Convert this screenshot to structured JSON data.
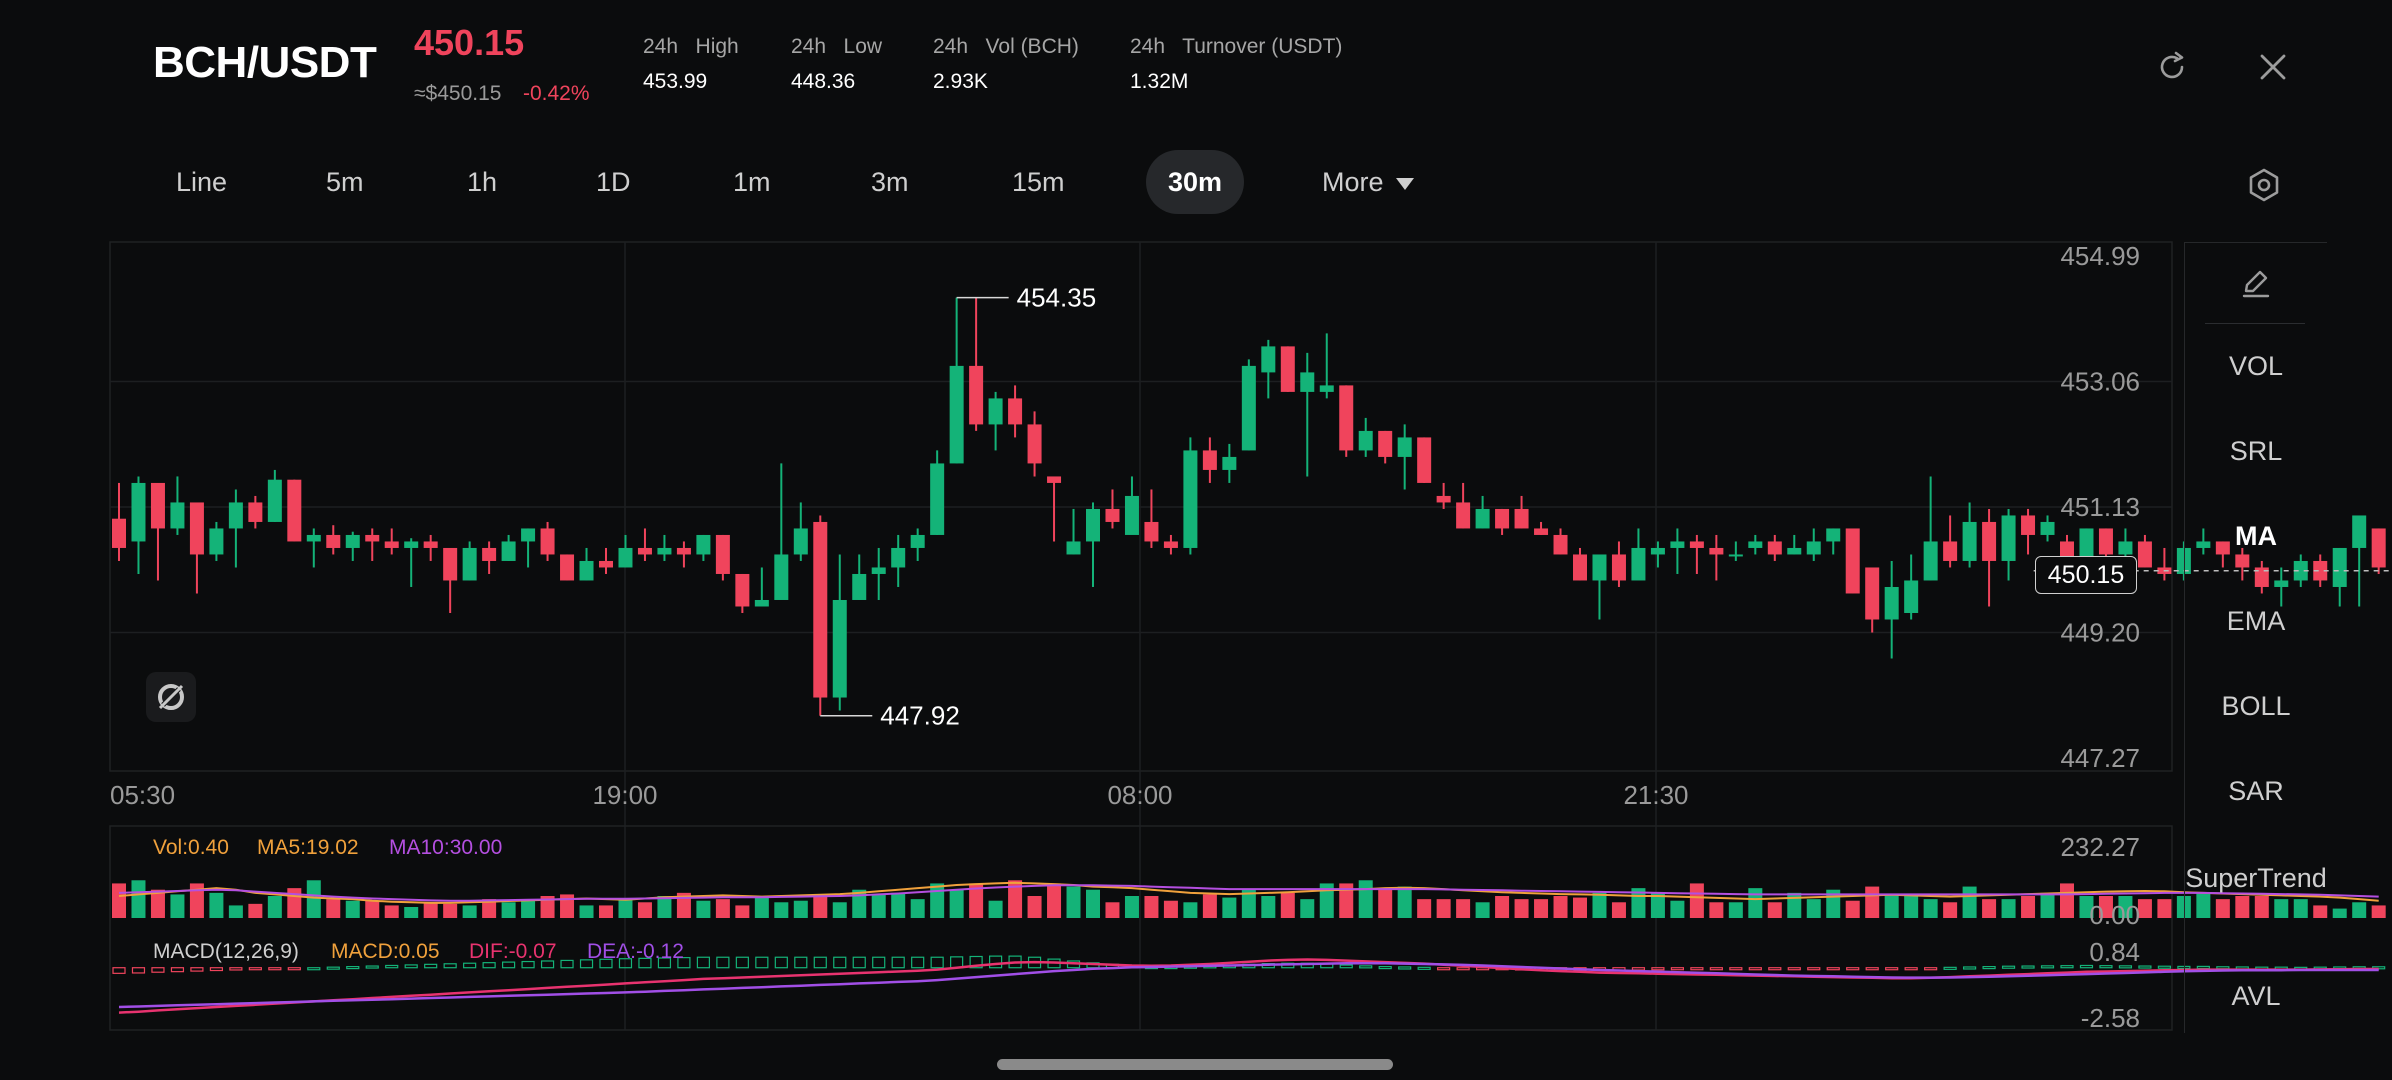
{
  "header": {
    "pair": "BCH/USDT",
    "last_price": "450.15",
    "approx_usd": "≈$450.15",
    "change_pct": "-0.42%",
    "stats": [
      {
        "label": "24h   High",
        "value": "453.99"
      },
      {
        "label": "24h   Low",
        "value": "448.36"
      },
      {
        "label": "24h   Vol (BCH)",
        "value": "2.93K"
      },
      {
        "label": "24h   Turnover (USDT)",
        "value": "1.32M"
      }
    ]
  },
  "timeframes": [
    "Line",
    "5m",
    "1h",
    "1D",
    "1m",
    "3m",
    "15m",
    "30m"
  ],
  "active_timeframe": "30m",
  "more_label": "More",
  "indicators": [
    "VOL",
    "SRL",
    "MA",
    "EMA",
    "BOLL",
    "SAR",
    "SuperTrend",
    "AVL"
  ],
  "active_indicator": "MA",
  "colors": {
    "up": "#14b378",
    "down": "#f0445c",
    "ma5": "#f0a13c",
    "ma10": "#b44fe0",
    "dif": "#e8336f",
    "dea": "#a14fe6",
    "background": "#0b0c0d"
  },
  "icons": {
    "refresh": "refresh-icon",
    "close": "close-icon",
    "settings": "settings-hexagon-icon",
    "draw": "pencil-icon",
    "lock": "chart-lock-icon"
  },
  "chart_data": {
    "type": "candlestick",
    "price_axis": {
      "ticks": [
        "454.99",
        "453.06",
        "451.13",
        "449.20",
        "447.27"
      ],
      "range": [
        447.27,
        454.99
      ]
    },
    "time_labels": [
      "05:30",
      "19:00",
      "08:00",
      "21:30"
    ],
    "high_label": "454.35",
    "low_label": "447.92",
    "current_price_label": "450.15",
    "candles": [
      [
        450.95,
        450.5,
        451.5,
        450.3
      ],
      [
        450.6,
        451.5,
        451.6,
        450.1
      ],
      [
        451.5,
        450.8,
        451.5,
        450.0
      ],
      [
        450.8,
        451.2,
        451.6,
        450.7
      ],
      [
        451.2,
        450.4,
        451.2,
        449.8
      ],
      [
        450.4,
        450.8,
        450.9,
        450.3
      ],
      [
        450.8,
        451.2,
        451.4,
        450.2
      ],
      [
        451.2,
        450.9,
        451.3,
        450.8
      ],
      [
        450.9,
        451.55,
        451.7,
        450.9
      ],
      [
        451.55,
        450.6,
        451.55,
        450.6
      ],
      [
        450.6,
        450.7,
        450.8,
        450.2
      ],
      [
        450.7,
        450.5,
        450.85,
        450.4
      ],
      [
        450.5,
        450.7,
        450.75,
        450.3
      ],
      [
        450.7,
        450.6,
        450.8,
        450.3
      ],
      [
        450.6,
        450.5,
        450.8,
        450.4
      ],
      [
        450.5,
        450.6,
        450.65,
        449.9
      ],
      [
        450.6,
        450.5,
        450.7,
        450.3
      ],
      [
        450.5,
        450.0,
        450.5,
        449.5
      ],
      [
        450.0,
        450.5,
        450.6,
        450.0
      ],
      [
        450.5,
        450.3,
        450.6,
        450.1
      ],
      [
        450.3,
        450.6,
        450.7,
        450.3
      ],
      [
        450.6,
        450.8,
        450.8,
        450.2
      ],
      [
        450.8,
        450.4,
        450.9,
        450.3
      ],
      [
        450.4,
        450.0,
        450.4,
        450.0
      ],
      [
        450.0,
        450.3,
        450.5,
        450.0
      ],
      [
        450.3,
        450.2,
        450.5,
        450.1
      ],
      [
        450.2,
        450.5,
        450.7,
        450.2
      ],
      [
        450.5,
        450.4,
        450.8,
        450.3
      ],
      [
        450.4,
        450.5,
        450.7,
        450.3
      ],
      [
        450.5,
        450.4,
        450.6,
        450.2
      ],
      [
        450.4,
        450.7,
        450.7,
        450.3
      ],
      [
        450.7,
        450.1,
        450.7,
        450.0
      ],
      [
        450.1,
        449.6,
        450.1,
        449.5
      ],
      [
        449.6,
        449.7,
        450.2,
        449.6
      ],
      [
        449.7,
        450.4,
        451.8,
        450.1
      ],
      [
        450.4,
        450.8,
        451.2,
        450.3
      ],
      [
        450.9,
        448.2,
        451.0,
        447.92
      ],
      [
        448.2,
        449.7,
        450.4,
        448.0
      ],
      [
        449.7,
        450.1,
        450.4,
        449.7
      ],
      [
        450.1,
        450.2,
        450.5,
        449.7
      ],
      [
        450.2,
        450.5,
        450.7,
        449.9
      ],
      [
        450.5,
        450.7,
        450.8,
        450.3
      ],
      [
        450.7,
        451.8,
        452.0,
        450.7
      ],
      [
        451.8,
        453.3,
        454.35,
        451.8
      ],
      [
        453.3,
        452.4,
        454.35,
        452.3
      ],
      [
        452.4,
        452.8,
        452.9,
        452.0
      ],
      [
        452.8,
        452.4,
        453.0,
        452.2
      ],
      [
        452.4,
        451.8,
        452.6,
        451.6
      ],
      [
        451.6,
        451.5,
        451.6,
        450.6
      ],
      [
        450.4,
        450.6,
        451.1,
        450.4
      ],
      [
        450.6,
        451.1,
        451.2,
        449.9
      ],
      [
        451.1,
        450.9,
        451.4,
        450.8
      ],
      [
        450.7,
        451.3,
        451.6,
        450.8
      ],
      [
        450.9,
        450.6,
        451.4,
        450.5
      ],
      [
        450.6,
        450.5,
        450.7,
        450.4
      ],
      [
        450.5,
        452.0,
        452.2,
        450.4
      ],
      [
        452.0,
        451.7,
        452.2,
        451.5
      ],
      [
        451.7,
        451.9,
        452.1,
        451.5
      ],
      [
        452.0,
        453.3,
        453.4,
        452.0
      ],
      [
        453.2,
        453.6,
        453.7,
        452.8
      ],
      [
        453.6,
        452.9,
        453.6,
        452.9
      ],
      [
        452.9,
        453.2,
        453.5,
        451.6
      ],
      [
        452.9,
        453.0,
        453.8,
        452.8
      ],
      [
        453.0,
        452.0,
        453.0,
        451.9
      ],
      [
        452.0,
        452.3,
        452.5,
        451.9
      ],
      [
        452.3,
        451.9,
        452.3,
        451.8
      ],
      [
        451.9,
        452.2,
        452.4,
        451.4
      ],
      [
        452.2,
        451.5,
        452.2,
        451.5
      ],
      [
        451.3,
        451.2,
        451.5,
        451.1
      ],
      [
        451.2,
        450.8,
        451.5,
        450.8
      ],
      [
        450.8,
        451.1,
        451.3,
        450.8
      ],
      [
        451.1,
        450.8,
        451.1,
        450.7
      ],
      [
        451.1,
        450.8,
        451.3,
        450.8
      ],
      [
        450.8,
        450.7,
        450.9,
        450.7
      ],
      [
        450.7,
        450.4,
        450.8,
        450.4
      ],
      [
        450.4,
        450.0,
        450.5,
        450.0
      ],
      [
        450.0,
        450.4,
        450.4,
        449.4
      ],
      [
        450.4,
        450.0,
        450.6,
        449.9
      ],
      [
        450.0,
        450.5,
        450.8,
        450.1
      ],
      [
        450.4,
        450.5,
        450.6,
        450.2
      ],
      [
        450.5,
        450.6,
        450.8,
        450.1
      ],
      [
        450.6,
        450.5,
        450.7,
        450.1
      ],
      [
        450.5,
        450.4,
        450.7,
        450.0
      ],
      [
        450.4,
        450.4,
        450.6,
        450.3
      ],
      [
        450.5,
        450.6,
        450.7,
        450.4
      ],
      [
        450.6,
        450.4,
        450.7,
        450.3
      ],
      [
        450.4,
        450.5,
        450.7,
        450.4
      ],
      [
        450.4,
        450.6,
        450.8,
        450.3
      ],
      [
        450.6,
        450.8,
        450.8,
        450.4
      ],
      [
        450.8,
        449.8,
        450.8,
        449.8
      ],
      [
        450.2,
        449.4,
        450.2,
        449.2
      ],
      [
        449.4,
        449.9,
        450.3,
        448.8
      ],
      [
        449.5,
        450.0,
        450.4,
        449.4
      ],
      [
        450.0,
        450.6,
        451.6,
        450.0
      ],
      [
        450.6,
        450.3,
        451.0,
        450.2
      ],
      [
        450.3,
        450.9,
        451.2,
        450.2
      ],
      [
        450.9,
        450.3,
        451.1,
        449.6
      ],
      [
        450.3,
        451.0,
        451.1,
        450.0
      ],
      [
        451.0,
        450.7,
        451.1,
        450.4
      ],
      [
        450.7,
        450.9,
        451.0,
        450.6
      ],
      [
        450.6,
        450.3,
        450.7,
        450.3
      ],
      [
        450.3,
        450.8,
        450.8,
        450.1
      ],
      [
        450.8,
        450.4,
        450.8,
        450.1
      ],
      [
        450.4,
        450.6,
        450.8,
        450.2
      ],
      [
        450.6,
        450.2,
        450.7,
        450.2
      ],
      [
        450.2,
        450.1,
        450.5,
        450.0
      ],
      [
        450.1,
        450.5,
        450.6,
        450.0
      ],
      [
        450.5,
        450.6,
        450.8,
        450.4
      ],
      [
        450.6,
        450.4,
        450.6,
        450.2
      ],
      [
        450.4,
        450.2,
        450.5,
        450.0
      ],
      [
        450.2,
        449.9,
        450.3,
        449.8
      ],
      [
        449.9,
        450.0,
        450.2,
        449.6
      ],
      [
        450.0,
        450.3,
        450.4,
        449.9
      ],
      [
        450.3,
        450.0,
        450.4,
        449.9
      ],
      [
        449.9,
        450.5,
        450.5,
        449.6
      ],
      [
        450.5,
        451.0,
        451.0,
        449.6
      ],
      [
        450.8,
        450.2,
        450.8,
        450.1
      ]
    ],
    "volume": {
      "label": "Vol:0.40",
      "ma5_label": "MA5:19.02",
      "ma10_label": "MA10:30.00",
      "axis_labels": [
        "232.27",
        "0.00"
      ],
      "range": [
        0,
        232.27
      ],
      "values": [
        110,
        120,
        90,
        75,
        110,
        80,
        40,
        45,
        70,
        95,
        120,
        60,
        55,
        55,
        40,
        35,
        50,
        45,
        40,
        60,
        50,
        60,
        70,
        75,
        40,
        40,
        60,
        50,
        70,
        80,
        55,
        60,
        40,
        70,
        50,
        55,
        70,
        50,
        90,
        75,
        80,
        60,
        110,
        90,
        110,
        55,
        120,
        70,
        110,
        100,
        90,
        50,
        70,
        70,
        55,
        50,
        75,
        65,
        90,
        70,
        80,
        60,
        110,
        110,
        120,
        90,
        100,
        60,
        60,
        60,
        50,
        70,
        60,
        60,
        70,
        65,
        80,
        50,
        95,
        80,
        55,
        110,
        50,
        50,
        95,
        50,
        80,
        60,
        90,
        55,
        100,
        75,
        70,
        60,
        50,
        100,
        60,
        60,
        70,
        80,
        110,
        70,
        70,
        70,
        60,
        60,
        70,
        80,
        60,
        70,
        70,
        60,
        60,
        40,
        30,
        50,
        40
      ],
      "ma5": [
        70,
        75,
        80,
        85,
        90,
        95,
        90,
        80,
        75,
        70,
        65,
        62,
        60,
        55,
        52,
        50,
        48,
        48,
        50,
        52,
        54,
        56,
        58,
        60,
        62,
        60,
        58,
        62,
        66,
        68,
        70,
        72,
        70,
        68,
        70,
        72,
        74,
        76,
        80,
        85,
        90,
        95,
        100,
        105,
        108,
        110,
        112,
        110,
        108,
        105,
        100,
        98,
        95,
        90,
        85,
        80,
        78,
        76,
        78,
        80,
        82,
        85,
        88,
        90,
        92,
        95,
        96,
        95,
        92,
        88,
        85,
        82,
        80,
        78,
        76,
        75,
        74,
        72,
        70,
        70,
        68,
        66,
        64,
        62,
        60,
        62,
        64,
        66,
        68,
        70,
        72,
        74,
        72,
        70,
        68,
        70,
        72,
        74,
        76,
        78,
        80,
        82,
        84,
        85,
        86,
        85,
        82,
        80,
        78,
        76,
        74,
        72,
        70,
        68,
        65,
        60,
        55
      ],
      "ma10": [
        80,
        82,
        84,
        86,
        88,
        90,
        88,
        84,
        80,
        76,
        72,
        68,
        65,
        62,
        60,
        58,
        56,
        55,
        55,
        56,
        57,
        58,
        59,
        60,
        61,
        61,
        61,
        62,
        63,
        64,
        65,
        66,
        66,
        66,
        67,
        68,
        69,
        70,
        72,
        75,
        78,
        82,
        86,
        90,
        94,
        97,
        100,
        102,
        104,
        104,
        104,
        103,
        102,
        100,
        98,
        96,
        94,
        92,
        92,
        92,
        92,
        92,
        92,
        92,
        92,
        92,
        92,
        92,
        91,
        90,
        89,
        88,
        87,
        86,
        85,
        84,
        83,
        82,
        81,
        80,
        79,
        78,
        77,
        76,
        75,
        75,
        75,
        75,
        75,
        75,
        75,
        75,
        75,
        75,
        75,
        75,
        75,
        75,
        75,
        75,
        75,
        76,
        77,
        78,
        79,
        80,
        80,
        80,
        79,
        78,
        77,
        76,
        75,
        74,
        72,
        70,
        68
      ]
    },
    "macd": {
      "label": "MACD(12,26,9)",
      "macd_label": "MACD:0.05",
      "dif_label": "DIF:-0.07",
      "dea_label": "DEA:-0.12",
      "axis_labels": [
        "0.84",
        "-2.58"
      ],
      "range": [
        -2.58,
        0.84
      ],
      "dif": [
        -2.4,
        -2.35,
        -2.28,
        -2.22,
        -2.16,
        -2.1,
        -2.04,
        -1.98,
        -1.92,
        -1.86,
        -1.8,
        -1.74,
        -1.68,
        -1.62,
        -1.56,
        -1.5,
        -1.44,
        -1.38,
        -1.32,
        -1.26,
        -1.2,
        -1.14,
        -1.08,
        -1.02,
        -0.96,
        -0.9,
        -0.84,
        -0.78,
        -0.72,
        -0.66,
        -0.6,
        -0.56,
        -0.52,
        -0.48,
        -0.44,
        -0.4,
        -0.36,
        -0.32,
        -0.28,
        -0.24,
        -0.2,
        -0.16,
        -0.1,
        0.0,
        0.1,
        0.2,
        0.28,
        0.3,
        0.28,
        0.24,
        0.2,
        0.16,
        0.12,
        0.1,
        0.12,
        0.16,
        0.2,
        0.26,
        0.32,
        0.38,
        0.42,
        0.44,
        0.42,
        0.38,
        0.34,
        0.3,
        0.26,
        0.22,
        0.16,
        0.1,
        0.04,
        -0.02,
        -0.08,
        -0.14,
        -0.18,
        -0.22,
        -0.26,
        -0.28,
        -0.3,
        -0.32,
        -0.34,
        -0.36,
        -0.38,
        -0.4,
        -0.42,
        -0.44,
        -0.46,
        -0.48,
        -0.5,
        -0.52,
        -0.54,
        -0.56,
        -0.56,
        -0.54,
        -0.5,
        -0.46,
        -0.42,
        -0.38,
        -0.34,
        -0.3,
        -0.26,
        -0.22,
        -0.2,
        -0.18,
        -0.16,
        -0.14,
        -0.12,
        -0.1,
        -0.1,
        -0.1,
        -0.1,
        -0.1,
        -0.1,
        -0.09,
        -0.08,
        -0.07,
        -0.07
      ],
      "dea": [
        -2.1,
        -2.07,
        -2.04,
        -2.01,
        -1.98,
        -1.95,
        -1.92,
        -1.89,
        -1.86,
        -1.83,
        -1.8,
        -1.77,
        -1.74,
        -1.71,
        -1.68,
        -1.65,
        -1.62,
        -1.59,
        -1.56,
        -1.53,
        -1.5,
        -1.47,
        -1.44,
        -1.41,
        -1.38,
        -1.35,
        -1.32,
        -1.28,
        -1.24,
        -1.2,
        -1.16,
        -1.12,
        -1.08,
        -1.04,
        -1.0,
        -0.96,
        -0.92,
        -0.88,
        -0.84,
        -0.8,
        -0.76,
        -0.72,
        -0.66,
        -0.58,
        -0.5,
        -0.42,
        -0.34,
        -0.26,
        -0.18,
        -0.12,
        -0.06,
        -0.02,
        0.02,
        0.04,
        0.06,
        0.08,
        0.1,
        0.12,
        0.14,
        0.16,
        0.18,
        0.2,
        0.22,
        0.24,
        0.24,
        0.24,
        0.22,
        0.2,
        0.18,
        0.15,
        0.12,
        0.08,
        0.04,
        0.0,
        -0.04,
        -0.08,
        -0.12,
        -0.15,
        -0.18,
        -0.21,
        -0.24,
        -0.27,
        -0.3,
        -0.33,
        -0.36,
        -0.39,
        -0.42,
        -0.44,
        -0.46,
        -0.48,
        -0.5,
        -0.52,
        -0.53,
        -0.53,
        -0.52,
        -0.5,
        -0.48,
        -0.46,
        -0.43,
        -0.4,
        -0.37,
        -0.34,
        -0.31,
        -0.28,
        -0.25,
        -0.22,
        -0.19,
        -0.17,
        -0.15,
        -0.14,
        -0.13,
        -0.13,
        -0.12,
        -0.12,
        -0.12,
        -0.12,
        -0.12
      ]
    }
  }
}
